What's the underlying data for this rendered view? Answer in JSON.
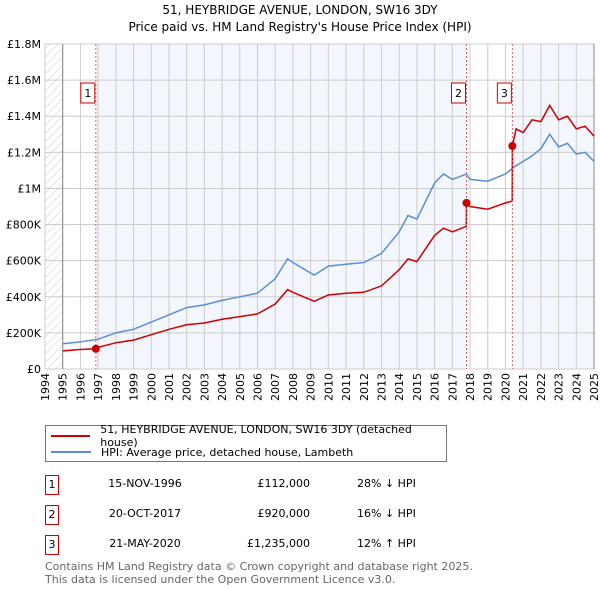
{
  "chart_data": {
    "type": "line",
    "title": "51, HEYBRIDGE AVENUE, LONDON, SW16 3DY",
    "subtitle": "Price paid vs. HM Land Registry's House Price Index (HPI)",
    "xlim": [
      1994,
      2025
    ],
    "ylim": [
      0,
      1800000
    ],
    "x_ticks": [
      "1994",
      "1995",
      "1996",
      "1997",
      "1998",
      "1999",
      "2000",
      "2001",
      "2002",
      "2003",
      "2004",
      "2005",
      "2006",
      "2007",
      "2008",
      "2009",
      "2010",
      "2011",
      "2012",
      "2013",
      "2014",
      "2015",
      "2016",
      "2017",
      "2018",
      "2019",
      "2020",
      "2021",
      "2022",
      "2023",
      "2024",
      "2025"
    ],
    "y_ticks": [
      {
        "v": 0,
        "label": "£0"
      },
      {
        "v": 200000,
        "label": "£200K"
      },
      {
        "v": 400000,
        "label": "£400K"
      },
      {
        "v": 600000,
        "label": "£600K"
      },
      {
        "v": 800000,
        "label": "£800K"
      },
      {
        "v": 1000000,
        "label": "£1M"
      },
      {
        "v": 1200000,
        "label": "£1.2M"
      },
      {
        "v": 1400000,
        "label": "£1.4M"
      },
      {
        "v": 1600000,
        "label": "£1.6M"
      },
      {
        "v": 1800000,
        "label": "£1.8M"
      }
    ],
    "grid": true,
    "series": [
      {
        "name": "51, HEYBRIDGE AVENUE, LONDON, SW16 3DY (detached house)",
        "color": "#cc0000",
        "x": [
          1995,
          1996,
          1996.87,
          1997,
          1998,
          1999,
          2000,
          2001,
          2002,
          2003,
          2004,
          2005,
          2006,
          2007,
          2007.7,
          2008,
          2009.2,
          2010,
          2011,
          2012,
          2013,
          2014,
          2014.5,
          2015,
          2016,
          2016.5,
          2017,
          2017.79,
          2017.8,
          2018,
          2019,
          2020,
          2020.38,
          2020.39,
          2020.6,
          2021,
          2021.5,
          2022,
          2022.5,
          2023,
          2023.5,
          2024,
          2024.5,
          2025
        ],
        "y": [
          100000,
          108000,
          112000,
          120000,
          145000,
          160000,
          190000,
          220000,
          245000,
          255000,
          275000,
          290000,
          305000,
          360000,
          440000,
          425000,
          375000,
          410000,
          420000,
          425000,
          460000,
          550000,
          610000,
          595000,
          740000,
          780000,
          760000,
          790000,
          920000,
          900000,
          885000,
          920000,
          930000,
          1235000,
          1330000,
          1310000,
          1380000,
          1370000,
          1460000,
          1380000,
          1400000,
          1330000,
          1345000,
          1290000
        ]
      },
      {
        "name": "HPI: Average price, detached house, Lambeth",
        "color": "#5b8ed6",
        "x": [
          1995,
          1996,
          1997,
          1998,
          1999,
          2000,
          2001,
          2002,
          2003,
          2004,
          2005,
          2006,
          2007,
          2007.7,
          2008,
          2009.2,
          2010,
          2011,
          2012,
          2013,
          2014,
          2014.5,
          2015,
          2016,
          2016.5,
          2017,
          2017.8,
          2018,
          2019,
          2020,
          2020.5,
          2021,
          2021.5,
          2022,
          2022.5,
          2023,
          2023.5,
          2024,
          2024.5,
          2025
        ],
        "y": [
          140000,
          150000,
          165000,
          200000,
          220000,
          260000,
          300000,
          340000,
          355000,
          380000,
          400000,
          420000,
          500000,
          610000,
          590000,
          520000,
          570000,
          580000,
          590000,
          640000,
          760000,
          850000,
          830000,
          1030000,
          1080000,
          1050000,
          1080000,
          1050000,
          1040000,
          1080000,
          1120000,
          1150000,
          1180000,
          1220000,
          1300000,
          1230000,
          1250000,
          1190000,
          1200000,
          1150000
        ]
      }
    ],
    "sales": [
      {
        "id": "1",
        "x": 1996.87,
        "price": 112000,
        "date": "15-NOV-1996",
        "price_label": "£112,000",
        "hpi": "28% ↓ HPI"
      },
      {
        "id": "2",
        "x": 2017.8,
        "price": 920000,
        "date": "20-OCT-2017",
        "price_label": "£920,000",
        "hpi": "16% ↓ HPI"
      },
      {
        "id": "3",
        "x": 2020.39,
        "price": 1235000,
        "date": "21-MAY-2020",
        "price_label": "£1,235,000",
        "hpi": "12% ↑ HPI"
      }
    ],
    "legend_placement": "below"
  },
  "footer": {
    "line1": "Contains HM Land Registry data © Crown copyright and database right 2025.",
    "line2": "This data is licensed under the Open Government Licence v3.0."
  }
}
